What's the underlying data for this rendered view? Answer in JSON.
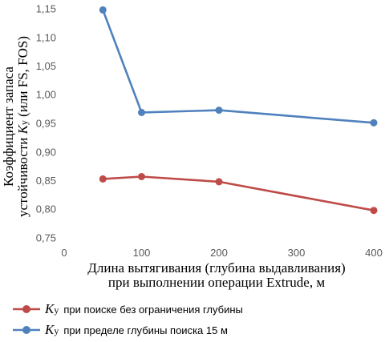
{
  "chart_data": {
    "type": "line",
    "x": [
      50,
      100,
      200,
      400
    ],
    "series": [
      {
        "name_parts": {
          "k": "K",
          "sub": "y",
          "text": "при поиске без ограничения глубины"
        },
        "values": [
          0.853,
          0.857,
          0.848,
          0.798
        ],
        "color": "#be4b48"
      },
      {
        "name_parts": {
          "k": "K",
          "sub": "y",
          "text": "при пределе глубины поиска 15 м"
        },
        "values": [
          1.148,
          0.969,
          0.973,
          0.951
        ],
        "color": "#4f81bd"
      }
    ],
    "xlim": [
      0,
      400
    ],
    "ylim": [
      0.75,
      1.15
    ],
    "xticks": [
      "0",
      "100",
      "200",
      "300",
      "400"
    ],
    "yticks": [
      "0,75",
      "0,80",
      "0,85",
      "0,90",
      "0,95",
      "1,00",
      "1,05",
      "1,10",
      "1,15"
    ],
    "xlabel_line1": "Длина вытягивания (глубина выдавливания)",
    "xlabel_line2": "при выполнении операции Extrude, м",
    "ylabel_line1": "Коэффициент запаса",
    "ylabel_line2_prefix": "устойчивости ",
    "ylabel_line2_k": "K",
    "ylabel_line2_sub": "y",
    "ylabel_line2_suffix": " (или FS, FOS)",
    "grid": false,
    "legend_position": "bottom"
  }
}
